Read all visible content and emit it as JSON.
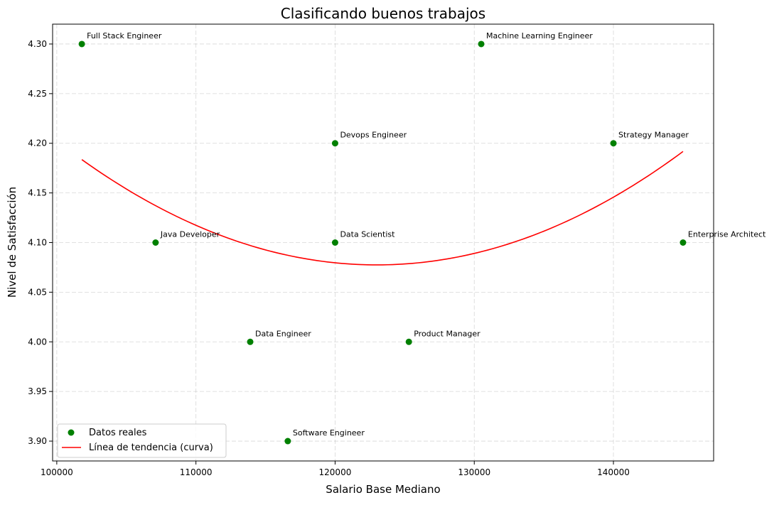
{
  "chart_data": {
    "type": "scatter",
    "title": "Clasificando buenos trabajos",
    "xlabel": "Salario Base Mediano",
    "ylabel": "Nivel de Satisfacción",
    "xlim": [
      99700,
      147200
    ],
    "ylim": [
      3.88,
      4.32
    ],
    "xticks": [
      100000,
      110000,
      120000,
      130000,
      140000
    ],
    "yticks": [
      3.9,
      3.95,
      4.0,
      4.05,
      4.1,
      4.15,
      4.2,
      4.25,
      4.3
    ],
    "grid": true,
    "legend_position": "lower-left",
    "series": [
      {
        "name": "Datos reales",
        "kind": "scatter",
        "color": "#008000",
        "points": [
          {
            "label": "Full Stack Engineer",
            "x": 101800,
            "y": 4.3
          },
          {
            "label": "Java Developer",
            "x": 107100,
            "y": 4.1
          },
          {
            "label": "Data Engineer",
            "x": 113900,
            "y": 4.0
          },
          {
            "label": "Software Engineer",
            "x": 116600,
            "y": 3.9
          },
          {
            "label": "Devops Engineer",
            "x": 120000,
            "y": 4.2
          },
          {
            "label": "Data Scientist",
            "x": 120000,
            "y": 4.1
          },
          {
            "label": "Product Manager",
            "x": 125300,
            "y": 4.0
          },
          {
            "label": "Machine Learning Engineer",
            "x": 130500,
            "y": 4.3
          },
          {
            "label": "Strategy Manager",
            "x": 140000,
            "y": 4.2
          },
          {
            "label": "Enterprise Architect",
            "x": 145000,
            "y": 4.1
          }
        ]
      },
      {
        "name": "Línea de tendencia (curva)",
        "kind": "line",
        "color": "#ff0000",
        "trend_quadratic": {
          "vertex_x": 123000,
          "vertex_y": 4.0775,
          "curvature_per_1000sq": 0.000236,
          "x_range": [
            101800,
            145000
          ]
        }
      }
    ]
  }
}
